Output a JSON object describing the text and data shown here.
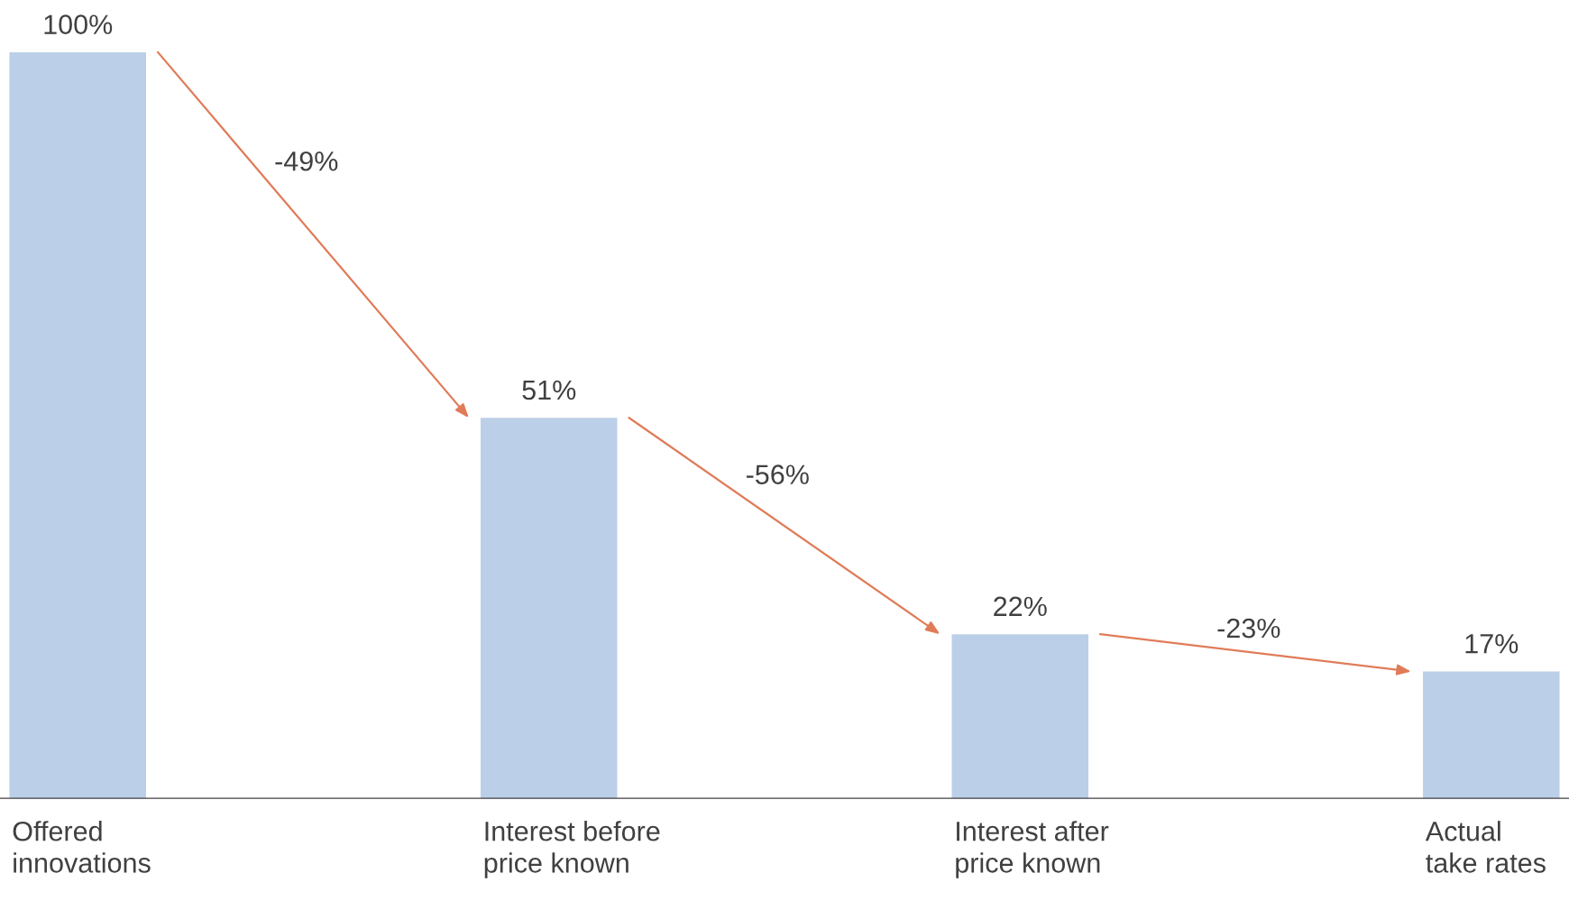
{
  "chart_data": {
    "type": "bar",
    "categories": [
      "Offered\ninnovations",
      "Interest before\nprice known",
      "Interest after\nprice known",
      "Actual\ntake rates"
    ],
    "values": [
      100,
      51,
      22,
      17
    ],
    "value_labels": [
      "100%",
      "51%",
      "22%",
      "17%"
    ],
    "color": "#bccfe8",
    "annotations": [
      "-49%",
      "-56%",
      "-23%"
    ]
  }
}
